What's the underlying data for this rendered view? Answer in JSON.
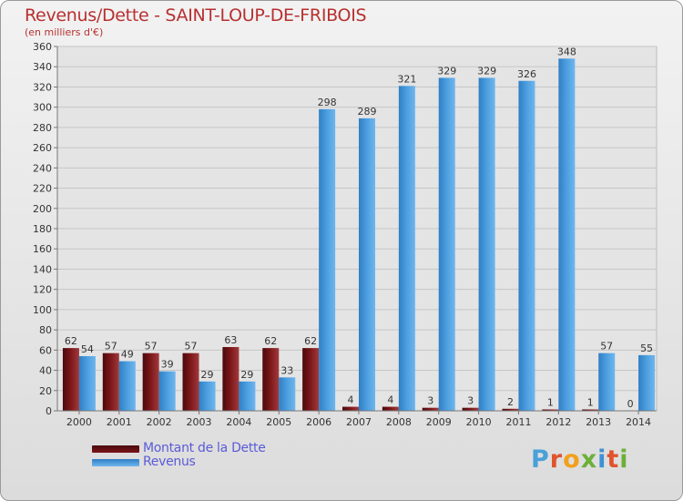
{
  "chart_data": {
    "type": "bar",
    "title": "Revenus/Dette - SAINT-LOUP-DE-FRIBOIS",
    "subtitle": "(en milliers d'€)",
    "categories": [
      "2000",
      "2001",
      "2002",
      "2003",
      "2004",
      "2005",
      "2006",
      "2007",
      "2008",
      "2009",
      "2010",
      "2011",
      "2012",
      "2013",
      "2014"
    ],
    "series": [
      {
        "name": "Montant de la Dette",
        "color": "#7a1518",
        "values": [
          62,
          57,
          57,
          57,
          63,
          62,
          62,
          4,
          4,
          3,
          3,
          2,
          1,
          1,
          0
        ]
      },
      {
        "name": "Revenus",
        "color": "#4d9fe0",
        "values": [
          54,
          49,
          39,
          29,
          29,
          33,
          298,
          289,
          321,
          329,
          329,
          326,
          348,
          57,
          55
        ]
      }
    ],
    "ylim": [
      0,
      360
    ],
    "yticks": [
      0,
      20,
      40,
      60,
      80,
      100,
      120,
      140,
      160,
      180,
      200,
      220,
      240,
      260,
      280,
      300,
      320,
      340,
      360
    ],
    "grid": true,
    "legend_position": "bottom-left"
  },
  "logo": {
    "text": "Proxiti"
  }
}
